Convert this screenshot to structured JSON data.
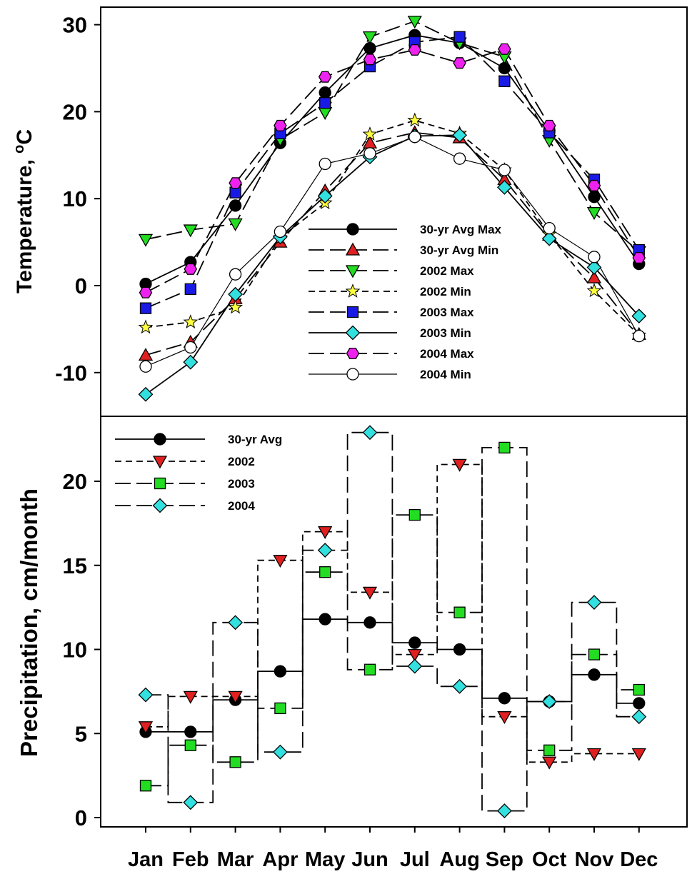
{
  "chart_data": [
    {
      "type": "line",
      "title": "",
      "xlabel": "",
      "ylabel": "Temperature, °C",
      "ylabel_main": "Temperature, ",
      "ylabel_sup": "o",
      "ylabel_unit": "C",
      "ylim": [
        -14.5,
        32
      ],
      "yticks": [
        30,
        20,
        10,
        0,
        -10
      ],
      "ytick_labels": [
        "30",
        "20",
        "10",
        "0",
        "-10"
      ],
      "categories": [
        "Jan",
        "Feb",
        "Mar",
        "Apr",
        "May",
        "Jun",
        "Jul",
        "Aug",
        "Sep",
        "Oct",
        "Nov",
        "Dec"
      ],
      "legend_position": "center-right",
      "series": [
        {
          "name": "30-yr Avg Max",
          "values": [
            0.2,
            2.7,
            9.2,
            16.4,
            22.2,
            27.3,
            28.8,
            27.9,
            25.0,
            17.8,
            10.2,
            2.5
          ],
          "color": "#000000",
          "marker": "circle",
          "dash": "solid"
        },
        {
          "name": "30-yr Avg Min",
          "values": [
            -8.0,
            -6.5,
            -1.5,
            5.0,
            10.9,
            16.4,
            17.6,
            17.0,
            12.2,
            5.8,
            0.9,
            -5.6
          ],
          "color": "#e02020",
          "marker": "triangle-up",
          "dash": "long"
        },
        {
          "name": "2002 Max",
          "values": [
            5.3,
            6.4,
            7.1,
            16.8,
            19.9,
            28.6,
            30.4,
            27.9,
            26.3,
            16.7,
            8.4,
            3.9
          ],
          "color": "#22dd22",
          "marker": "triangle-down",
          "dash": "long"
        },
        {
          "name": "2002 Min",
          "values": [
            -4.8,
            -4.2,
            -2.5,
            5.5,
            9.5,
            17.4,
            19.0,
            17.5,
            13.3,
            5.9,
            -0.6,
            -5.7
          ],
          "color": "#ffff40",
          "marker": "star",
          "dash": "short"
        },
        {
          "name": "2003 Max",
          "values": [
            -2.6,
            -0.4,
            10.7,
            17.5,
            21.0,
            25.2,
            28.0,
            28.6,
            23.5,
            17.6,
            12.2,
            4.1
          ],
          "color": "#1a1ae6",
          "marker": "square",
          "dash": "long"
        },
        {
          "name": "2003 Min",
          "values": [
            -12.5,
            -8.8,
            -1.0,
            5.6,
            10.3,
            14.8,
            17.2,
            17.3,
            11.3,
            5.4,
            2.1,
            -3.5
          ],
          "color": "#33e0e0",
          "marker": "diamond",
          "dash": "solid"
        },
        {
          "name": "2004 Max",
          "values": [
            -0.8,
            1.9,
            11.8,
            18.4,
            24.0,
            26.0,
            27.1,
            25.6,
            27.2,
            18.4,
            11.5,
            3.2
          ],
          "color": "#ee22ee",
          "marker": "hexagon",
          "dash": "long"
        },
        {
          "name": "2004 Min",
          "values": [
            -9.3,
            -7.1,
            1.3,
            6.2,
            14.0,
            15.2,
            17.1,
            14.6,
            13.3,
            6.6,
            3.3,
            -5.8
          ],
          "color": "#ffffff",
          "marker": "circle",
          "dash": "solid-thin"
        }
      ]
    },
    {
      "type": "line",
      "step": "mid",
      "title": "",
      "xlabel": "",
      "ylabel": "Precipitation, cm/month",
      "ylim": [
        -0.5,
        23.5
      ],
      "yticks": [
        20,
        15,
        10,
        5,
        0
      ],
      "ytick_labels": [
        "20",
        "15",
        "10",
        "5",
        "0"
      ],
      "categories": [
        "Jan",
        "Feb",
        "Mar",
        "Apr",
        "May",
        "Jun",
        "Jul",
        "Aug",
        "Sep",
        "Oct",
        "Nov",
        "Dec"
      ],
      "legend_position": "top-left",
      "series": [
        {
          "name": "30-yr Avg",
          "values": [
            5.1,
            5.1,
            7.0,
            8.7,
            11.8,
            11.6,
            10.4,
            10.0,
            7.1,
            6.9,
            8.5,
            6.8
          ],
          "color": "#000000",
          "marker": "circle",
          "dash": "solid"
        },
        {
          "name": "2002",
          "values": [
            5.4,
            7.2,
            7.2,
            15.3,
            17.0,
            13.4,
            9.7,
            21.0,
            6.0,
            3.3,
            3.8,
            3.8
          ],
          "color": "#e02020",
          "marker": "triangle-down",
          "dash": "short"
        },
        {
          "name": "2003",
          "values": [
            1.9,
            4.3,
            3.3,
            6.5,
            14.6,
            8.8,
            18.0,
            12.2,
            22.0,
            4.0,
            9.7,
            7.6
          ],
          "color": "#22dd22",
          "marker": "square",
          "dash": "long"
        },
        {
          "name": "2004",
          "values": [
            7.3,
            0.9,
            11.6,
            3.9,
            15.9,
            22.9,
            9.0,
            7.8,
            0.4,
            6.9,
            12.8,
            6.0
          ],
          "color": "#33e0e0",
          "marker": "diamond",
          "dash": "long"
        }
      ]
    }
  ]
}
